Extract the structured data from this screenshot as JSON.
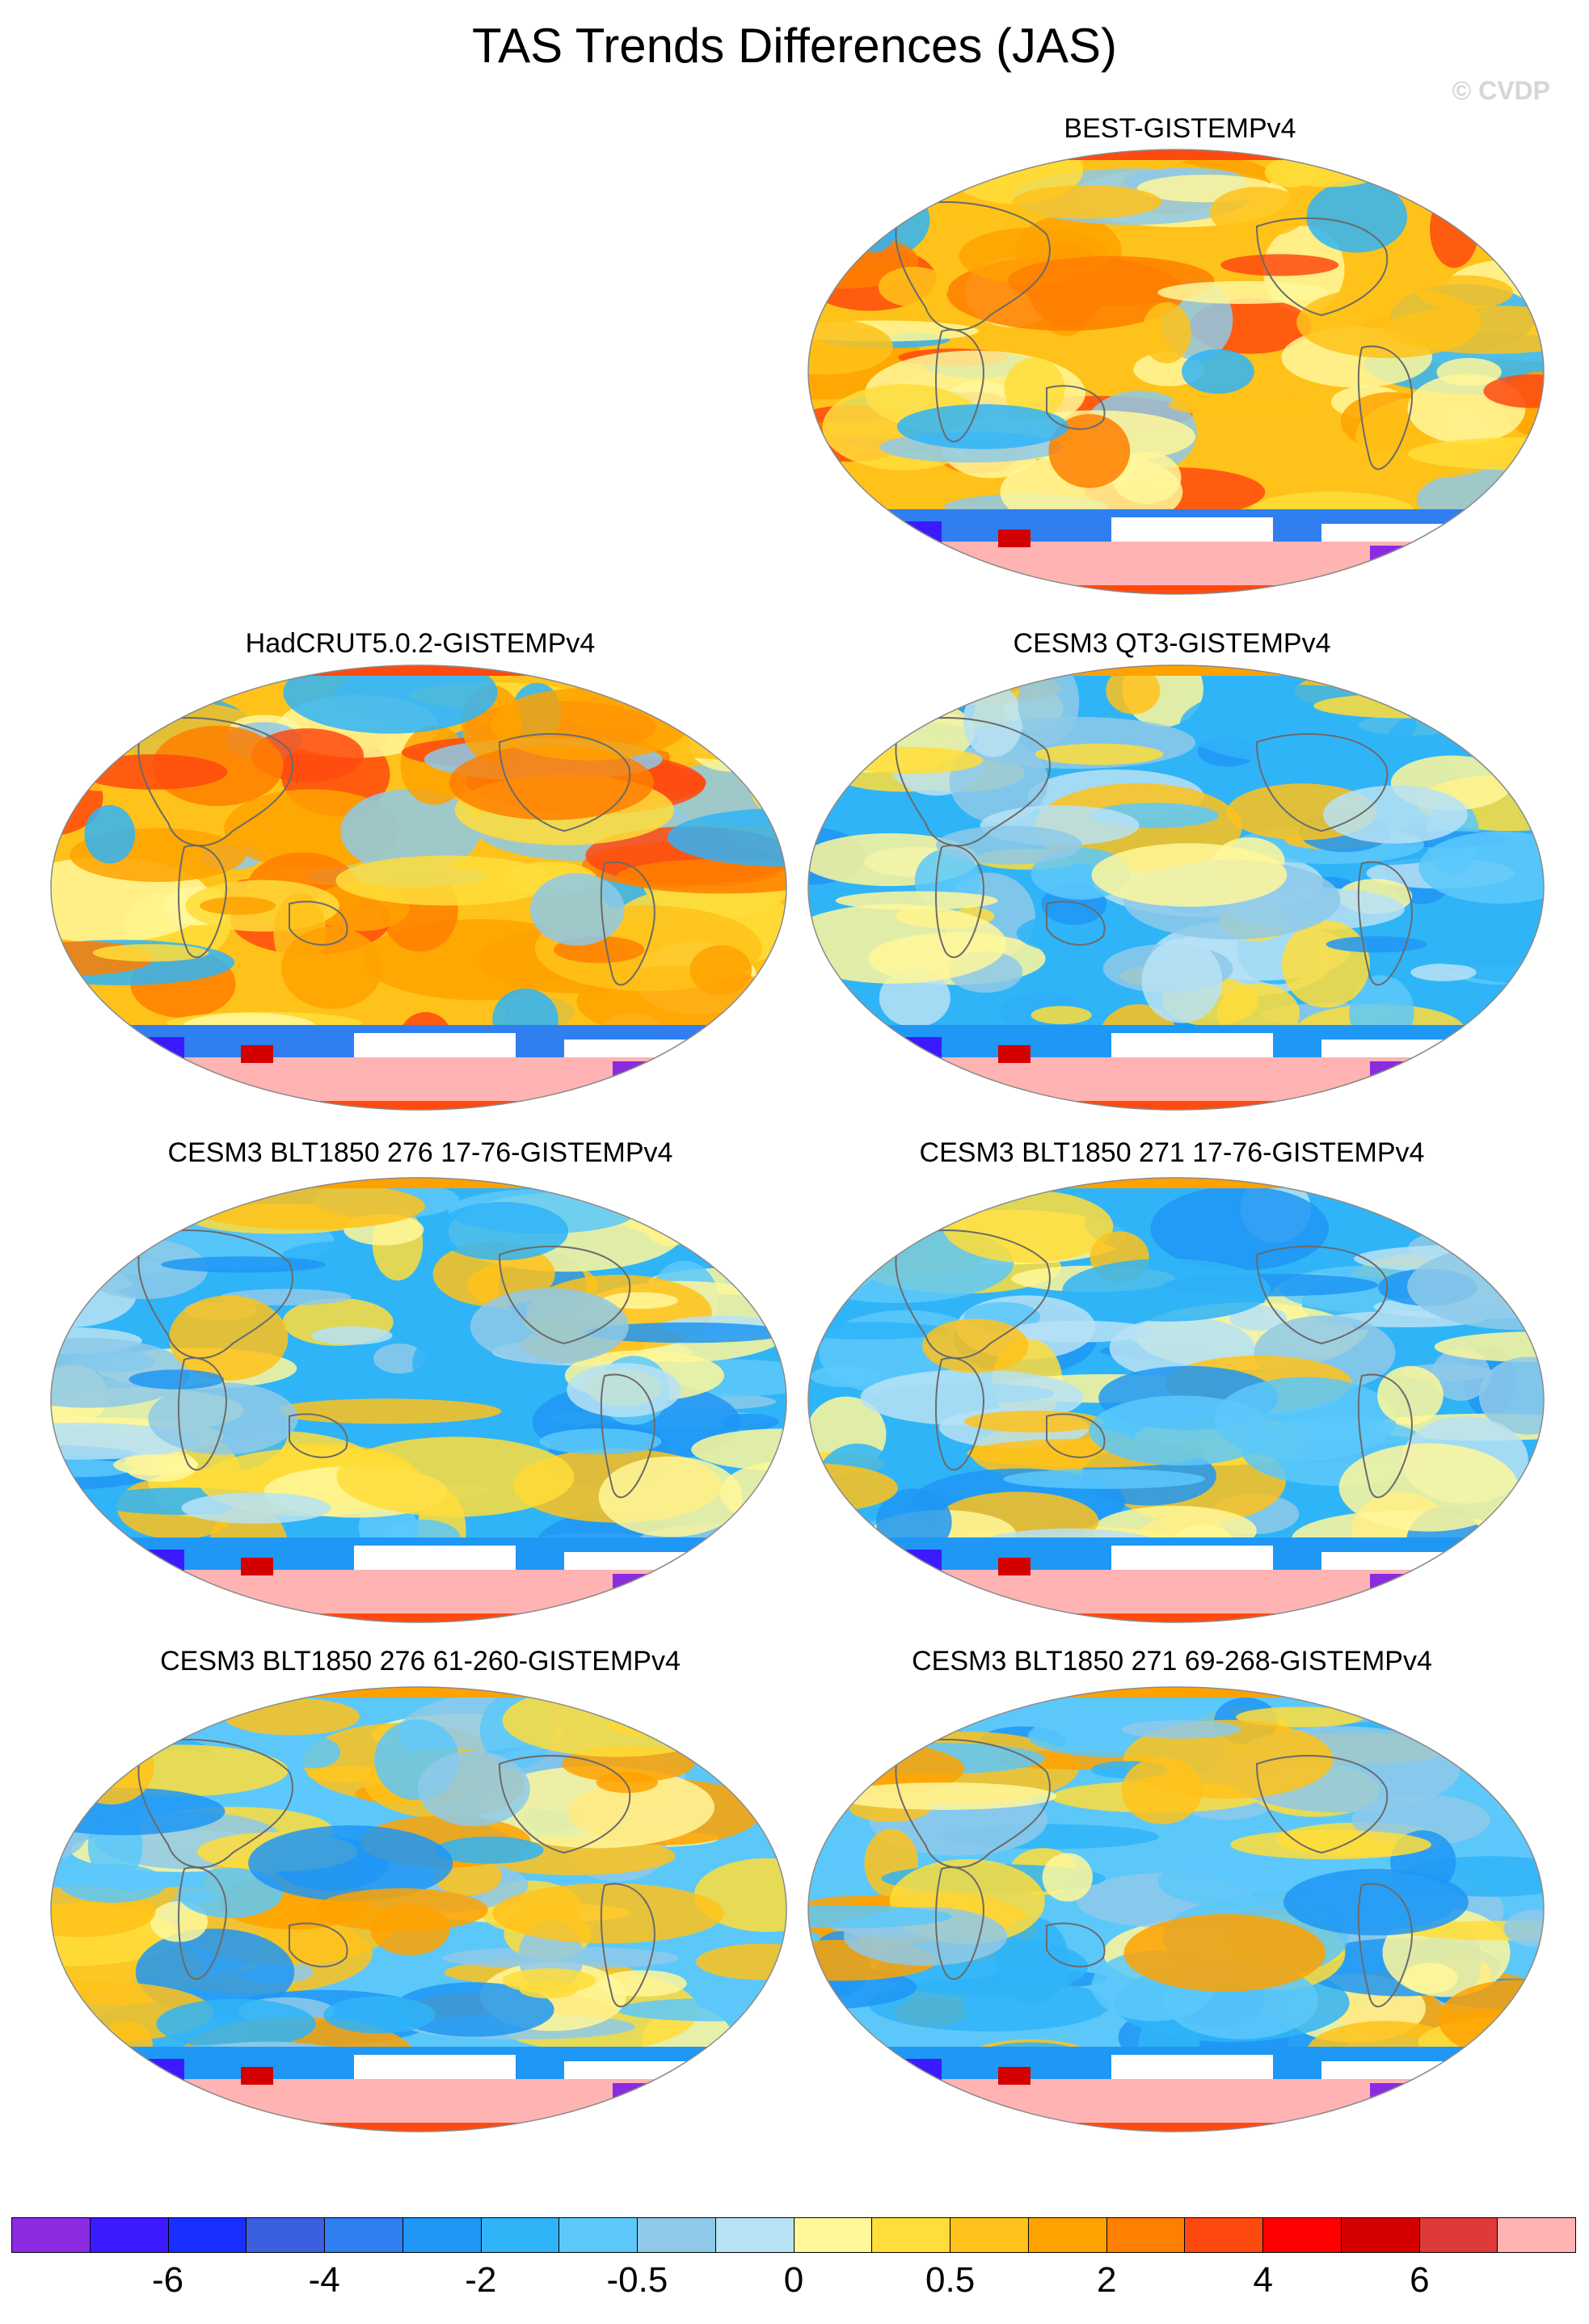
{
  "figure": {
    "title": "TAS Trends Differences (JAS)",
    "credit": "© CVDP"
  },
  "panels": [
    {
      "label": "BEST-GISTEMPv4",
      "style": "warm"
    },
    {
      "label": "HadCRUT5.0.2-GISTEMPv4",
      "style": "warm"
    },
    {
      "label": "CESM3 QT3-GISTEMPv4",
      "style": "cool"
    },
    {
      "label": "CESM3 BLT1850 276 17-76-GISTEMPv4",
      "style": "cool"
    },
    {
      "label": "CESM3 BLT1850 271 17-76-GISTEMPv4",
      "style": "cool"
    },
    {
      "label": "CESM3 BLT1850 276 61-260-GISTEMPv4",
      "style": "mixed"
    },
    {
      "label": "CESM3 BLT1850 271 69-268-GISTEMPv4",
      "style": "mixed"
    }
  ],
  "colorbar": {
    "colors": [
      "#8a2be2",
      "#3b1aff",
      "#1a2fff",
      "#3a5fe0",
      "#2f7ff0",
      "#1f97f5",
      "#2fb4f8",
      "#5cc8fa",
      "#8ec9e9",
      "#b7e2f4",
      "#fff79a",
      "#ffdd3a",
      "#ffc21a",
      "#ffa200",
      "#ff7f00",
      "#ff4a0f",
      "#ff0000",
      "#d40000",
      "#de3a3a",
      "#ffb3b3"
    ],
    "labels": [
      "-6",
      "-4",
      "-2",
      "-0.5",
      "0",
      "0.5",
      "2",
      "4",
      "6"
    ]
  }
}
